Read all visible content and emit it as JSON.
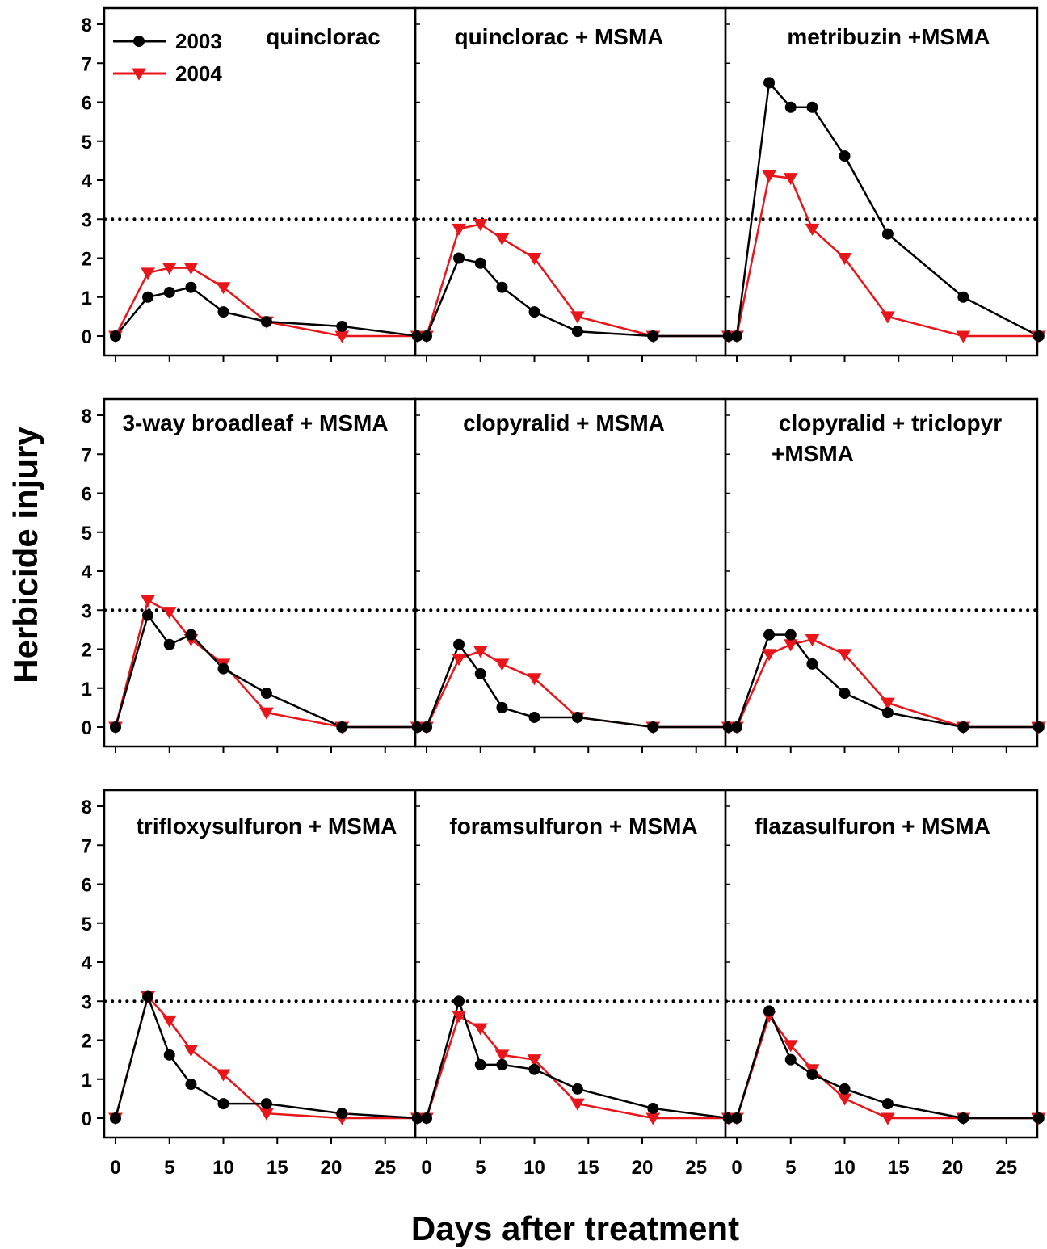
{
  "chart_data": {
    "type": "line",
    "layout": "3x3 small multiples",
    "xlabel": "Days after treatment",
    "ylabel": "Herbicide injury",
    "xlim": [
      -1,
      28
    ],
    "ylim": [
      -0.5,
      8.5
    ],
    "x_ticks": [
      0,
      5,
      10,
      15,
      20,
      25
    ],
    "y_ticks": [
      0,
      1,
      2,
      3,
      4,
      5,
      6,
      7,
      8
    ],
    "reference_line": {
      "y": 3,
      "style": "dotted"
    },
    "x": [
      0,
      3,
      5,
      7,
      10,
      14,
      21,
      28
    ],
    "legend": {
      "placement": "top-left of first panel",
      "entries": [
        {
          "label": "2003",
          "color": "#000000",
          "marker": "circle"
        },
        {
          "label": "2004",
          "color": "#e8161b",
          "marker": "triangle-down"
        }
      ]
    },
    "panels": [
      {
        "title_lines": [
          "quinclorac"
        ],
        "series": [
          {
            "name": "2003",
            "values": [
              0,
              1.0,
              1.12,
              1.25,
              0.62,
              0.37,
              0.25,
              0
            ]
          },
          {
            "name": "2004",
            "values": [
              0,
              1.62,
              1.75,
              1.75,
              1.25,
              0.37,
              0,
              0
            ]
          }
        ]
      },
      {
        "title_lines": [
          "quinclorac + MSMA"
        ],
        "series": [
          {
            "name": "2003",
            "values": [
              0,
              2.0,
              1.87,
              1.25,
              0.62,
              0.12,
              0,
              0
            ]
          },
          {
            "name": "2004",
            "values": [
              0,
              2.75,
              2.87,
              2.5,
              2.0,
              0.5,
              0,
              0
            ]
          }
        ]
      },
      {
        "title_lines": [
          "metribuzin +MSMA"
        ],
        "series": [
          {
            "name": "2003",
            "values": [
              0,
              6.5,
              5.87,
              5.87,
              4.62,
              2.62,
              1.0,
              0
            ]
          },
          {
            "name": "2004",
            "values": [
              0,
              4.12,
              4.05,
              2.75,
              2.0,
              0.5,
              0,
              0
            ]
          }
        ]
      },
      {
        "title_lines": [
          "3-way broadleaf + MSMA"
        ],
        "series": [
          {
            "name": "2003",
            "values": [
              0,
              2.87,
              2.12,
              2.37,
              1.5,
              0.87,
              0,
              0
            ]
          },
          {
            "name": "2004",
            "values": [
              0,
              3.25,
              2.95,
              2.25,
              1.62,
              0.37,
              0,
              0
            ]
          }
        ]
      },
      {
        "title_lines": [
          "clopyralid + MSMA"
        ],
        "series": [
          {
            "name": "2003",
            "values": [
              0,
              2.12,
              1.37,
              0.5,
              0.25,
              0.25,
              0,
              0
            ]
          },
          {
            "name": "2004",
            "values": [
              0,
              1.75,
              1.95,
              1.62,
              1.25,
              0.25,
              0,
              0
            ]
          }
        ]
      },
      {
        "title_lines": [
          "clopyralid + triclopyr",
          "+MSMA"
        ],
        "series": [
          {
            "name": "2003",
            "values": [
              0,
              2.37,
              2.37,
              1.62,
              0.87,
              0.37,
              0,
              0
            ]
          },
          {
            "name": "2004",
            "values": [
              0,
              1.87,
              2.12,
              2.25,
              1.87,
              0.62,
              0,
              0
            ]
          }
        ]
      },
      {
        "title_lines": [
          "trifloxysulfuron + MSMA"
        ],
        "series": [
          {
            "name": "2003",
            "values": [
              0,
              3.12,
              1.62,
              0.87,
              0.37,
              0.37,
              0.12,
              0
            ]
          },
          {
            "name": "2004",
            "values": [
              0,
              3.12,
              2.5,
              1.75,
              1.12,
              0.12,
              0,
              0
            ]
          }
        ]
      },
      {
        "title_lines": [
          "foramsulfuron  + MSMA"
        ],
        "series": [
          {
            "name": "2003",
            "values": [
              0,
              3.0,
              1.37,
              1.37,
              1.25,
              0.75,
              0.25,
              0
            ]
          },
          {
            "name": "2004",
            "values": [
              0,
              2.62,
              2.3,
              1.62,
              1.5,
              0.37,
              0,
              0
            ]
          }
        ]
      },
      {
        "title_lines": [
          "flazasulfuron + MSMA"
        ],
        "series": [
          {
            "name": "2003",
            "values": [
              0,
              2.75,
              1.5,
              1.12,
              0.75,
              0.37,
              0,
              0
            ]
          },
          {
            "name": "2004",
            "values": [
              0,
              2.62,
              1.87,
              1.25,
              0.5,
              0,
              0,
              0
            ]
          }
        ]
      }
    ]
  }
}
